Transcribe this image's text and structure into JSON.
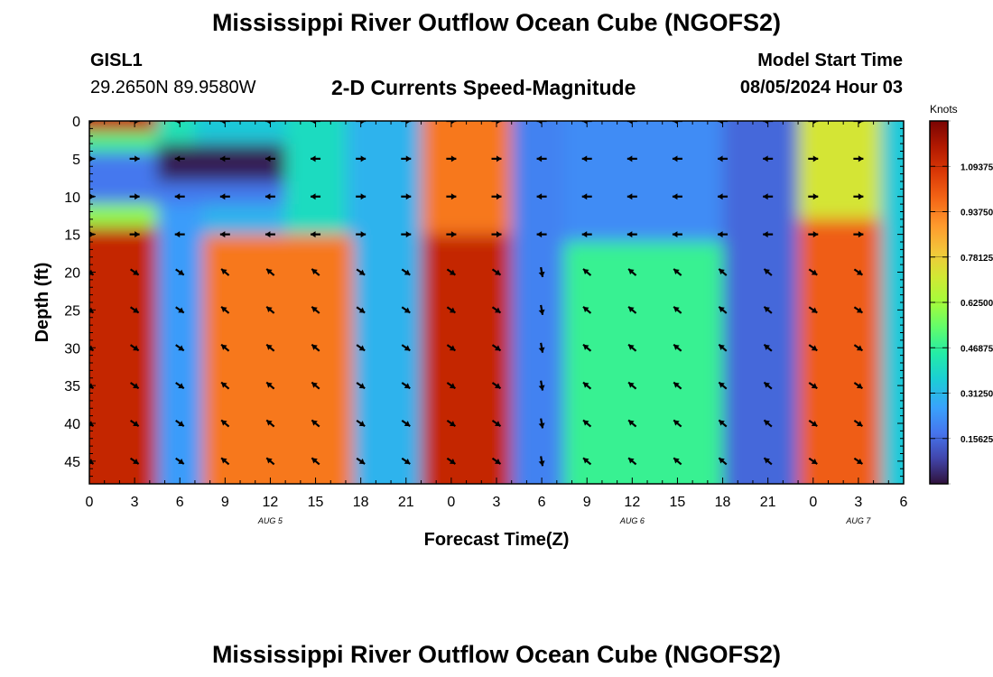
{
  "header": {
    "title": "Mississippi River Outflow Ocean Cube (NGOFS2)",
    "station_id": "GISL1",
    "station_coords": "29.2650N  89.9580W",
    "subtitle": "2-D Currents Speed-Magnitude",
    "model_start_label": "Model Start Time",
    "model_start_value": "08/05/2024 Hour 03"
  },
  "footer": {
    "title": "Mississippi River Outflow Ocean Cube (NGOFS2)"
  },
  "chart_data": {
    "type": "heatmap",
    "xlabel": "Forecast Time(Z)",
    "ylabel": "Depth (ft)",
    "x_tick_labels": [
      "0",
      "3",
      "6",
      "9",
      "12",
      "15",
      "18",
      "21",
      "0",
      "3",
      "6",
      "9",
      "12",
      "15",
      "18",
      "21",
      "0",
      "3",
      "6"
    ],
    "x_range_hours": [
      0,
      54
    ],
    "date_labels": [
      {
        "label": "AUG 5",
        "hour": 12
      },
      {
        "label": "AUG 6",
        "hour": 36
      },
      {
        "label": "AUG 7",
        "hour": 51
      }
    ],
    "y_tick_labels": [
      "0",
      "5",
      "10",
      "15",
      "20",
      "25",
      "30",
      "35",
      "40",
      "45"
    ],
    "y_range_ft": [
      0,
      48
    ],
    "y_inverted": true,
    "colorbar": {
      "label": "Knots",
      "ticks": [
        "1.09375",
        "0.93750",
        "0.78125",
        "0.62500",
        "0.46875",
        "0.31250",
        "0.15625"
      ],
      "range": [
        0,
        1.25
      ],
      "colormap": "turbo"
    },
    "speed_regions": [
      {
        "t0": 0,
        "t1": 4.5,
        "d0": 0,
        "d1": 1.5,
        "v": 1.12
      },
      {
        "t0": 0,
        "t1": 4.5,
        "d0": 1.5,
        "d1": 4,
        "v": 0.5
      },
      {
        "t0": 0,
        "t1": 4.5,
        "d0": 4,
        "d1": 11,
        "v": 0.18
      },
      {
        "t0": 0,
        "t1": 4.5,
        "d0": 11,
        "d1": 14,
        "v": 0.6
      },
      {
        "t0": 0,
        "t1": 4.5,
        "d0": 14,
        "d1": 48,
        "v": 1.12
      },
      {
        "t0": 4.5,
        "t1": 7,
        "d0": 0,
        "d1": 3,
        "v": 0.42
      },
      {
        "t0": 4.5,
        "t1": 13,
        "d0": 3,
        "d1": 8,
        "v": 0.02
      },
      {
        "t0": 4.5,
        "t1": 13,
        "d0": 8,
        "d1": 11,
        "v": 0.18
      },
      {
        "t0": 7,
        "t1": 13,
        "d0": 0,
        "d1": 3,
        "v": 0.35
      },
      {
        "t0": 4.5,
        "t1": 7.5,
        "d0": 11,
        "d1": 48,
        "v": 0.25
      },
      {
        "t0": 13,
        "t1": 17,
        "d0": 0,
        "d1": 15,
        "v": 0.4
      },
      {
        "t0": 7.5,
        "t1": 17.5,
        "d0": 15,
        "d1": 48,
        "v": 0.95
      },
      {
        "t0": 17,
        "t1": 22,
        "d0": 0,
        "d1": 15,
        "v": 0.3
      },
      {
        "t0": 17.5,
        "t1": 22,
        "d0": 15,
        "d1": 48,
        "v": 0.3
      },
      {
        "t0": 22,
        "t1": 28,
        "d0": 0,
        "d1": 15,
        "v": 0.95
      },
      {
        "t0": 22,
        "t1": 28,
        "d0": 15,
        "d1": 48,
        "v": 1.12
      },
      {
        "t0": 28,
        "t1": 31.5,
        "d0": 0,
        "d1": 48,
        "v": 0.2
      },
      {
        "t0": 31.5,
        "t1": 42,
        "d0": 0,
        "d1": 16,
        "v": 0.22
      },
      {
        "t0": 31.5,
        "t1": 42,
        "d0": 16,
        "d1": 48,
        "v": 0.48
      },
      {
        "t0": 42,
        "t1": 47,
        "d0": 0,
        "d1": 48,
        "v": 0.15
      },
      {
        "t0": 47,
        "t1": 52.5,
        "d0": 0,
        "d1": 13,
        "v": 0.72
      },
      {
        "t0": 47,
        "t1": 52.5,
        "d0": 13,
        "d1": 48,
        "v": 1.0
      },
      {
        "t0": 52.5,
        "t1": 54,
        "d0": 0,
        "d1": 48,
        "v": 0.35
      }
    ],
    "vector_grid": {
      "hours": [
        0,
        3,
        6,
        9,
        12,
        15,
        18,
        21,
        24,
        27,
        30,
        33,
        36,
        39,
        42,
        45,
        48,
        51
      ],
      "depths": [
        0,
        5,
        10,
        15,
        20,
        25,
        30,
        35,
        40,
        45
      ],
      "direction_segments": [
        {
          "t0": 0,
          "t1": 4.5,
          "up": "E",
          "down": "SE"
        },
        {
          "t0": 4.5,
          "t1": 7.5,
          "up": "W",
          "down": "SE"
        },
        {
          "t0": 7.5,
          "t1": 16.5,
          "up": "W",
          "down": "NW"
        },
        {
          "t0": 16.5,
          "t1": 22.5,
          "up": "E",
          "down": "SE"
        },
        {
          "t0": 22.5,
          "t1": 28.5,
          "up": "E",
          "down": "SE"
        },
        {
          "t0": 28.5,
          "t1": 31.5,
          "up": "W",
          "down": "S"
        },
        {
          "t0": 31.5,
          "t1": 46.5,
          "up": "W",
          "down": "NW"
        },
        {
          "t0": 46.5,
          "t1": 54,
          "up": "E",
          "down": "SE"
        }
      ]
    }
  }
}
